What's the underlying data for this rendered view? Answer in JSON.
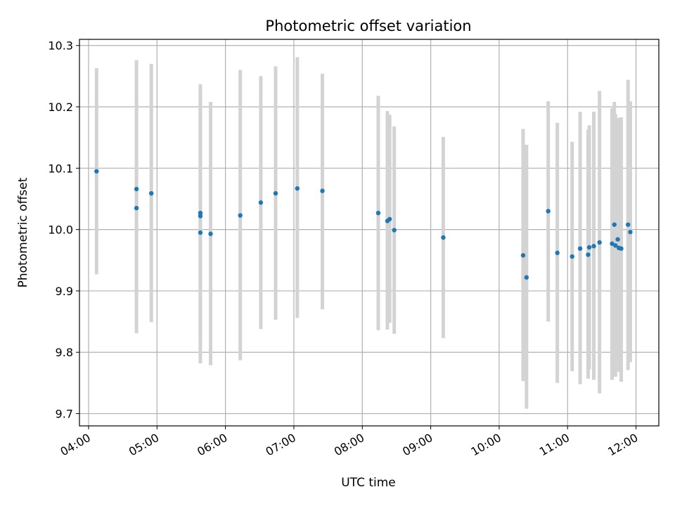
{
  "chart_data": {
    "type": "scatter",
    "title": "Photometric offset variation",
    "xlabel": "UTC time",
    "ylabel": "Photometric offset",
    "x_is_time": true,
    "xlim": [
      "03:52",
      "12:20"
    ],
    "ylim": [
      9.68,
      10.31
    ],
    "x_ticks": [
      "04:00",
      "05:00",
      "06:00",
      "07:00",
      "08:00",
      "09:00",
      "10:00",
      "11:00",
      "12:00"
    ],
    "y_ticks": [
      9.7,
      9.8,
      9.9,
      10.0,
      10.1,
      10.2,
      10.3
    ],
    "y_tick_labels": [
      "9.7",
      "9.8",
      "9.9",
      "10.0",
      "10.1",
      "10.2",
      "10.3"
    ],
    "grid": true,
    "point_color": "#1f77b4",
    "errorbar_color": "#d3d3d3",
    "points": [
      {
        "time": "04:07",
        "y": 10.095,
        "err_low": 9.927,
        "err_high": 10.263
      },
      {
        "time": "04:42",
        "y": 10.066,
        "err_low": 9.893,
        "err_high": 10.239
      },
      {
        "time": "04:42",
        "y": 10.035,
        "err_low": 9.831,
        "err_high": 10.276
      },
      {
        "time": "04:55",
        "y": 10.059,
        "err_low": 9.849,
        "err_high": 10.27
      },
      {
        "time": "05:38",
        "y": 10.027,
        "err_low": 9.817,
        "err_high": 10.237
      },
      {
        "time": "05:38",
        "y": 10.022,
        "err_low": 9.815,
        "err_high": 10.229
      },
      {
        "time": "05:38",
        "y": 9.995,
        "err_low": 9.782,
        "err_high": 10.208
      },
      {
        "time": "05:47",
        "y": 9.993,
        "err_low": 9.779,
        "err_high": 10.208
      },
      {
        "time": "06:13",
        "y": 10.023,
        "err_low": 9.787,
        "err_high": 10.26
      },
      {
        "time": "06:31",
        "y": 10.044,
        "err_low": 9.838,
        "err_high": 10.25
      },
      {
        "time": "06:44",
        "y": 10.059,
        "err_low": 9.853,
        "err_high": 10.266
      },
      {
        "time": "07:03",
        "y": 10.067,
        "err_low": 9.856,
        "err_high": 10.281
      },
      {
        "time": "07:25",
        "y": 10.063,
        "err_low": 9.87,
        "err_high": 10.254
      },
      {
        "time": "08:14",
        "y": 10.027,
        "err_low": 9.836,
        "err_high": 10.218
      },
      {
        "time": "08:22",
        "y": 10.014,
        "err_low": 9.837,
        "err_high": 10.193
      },
      {
        "time": "08:24",
        "y": 10.017,
        "err_low": 9.848,
        "err_high": 10.187
      },
      {
        "time": "08:28",
        "y": 9.999,
        "err_low": 9.83,
        "err_high": 10.168
      },
      {
        "time": "09:11",
        "y": 9.987,
        "err_low": 9.823,
        "err_high": 10.151
      },
      {
        "time": "10:21",
        "y": 9.958,
        "err_low": 9.753,
        "err_high": 10.164
      },
      {
        "time": "10:24",
        "y": 9.922,
        "err_low": 9.708,
        "err_high": 10.138
      },
      {
        "time": "10:43",
        "y": 10.03,
        "err_low": 9.85,
        "err_high": 10.209
      },
      {
        "time": "10:51",
        "y": 9.962,
        "err_low": 9.75,
        "err_high": 10.174
      },
      {
        "time": "11:04",
        "y": 9.956,
        "err_low": 9.769,
        "err_high": 10.143
      },
      {
        "time": "11:11",
        "y": 9.969,
        "err_low": 9.748,
        "err_high": 10.192
      },
      {
        "time": "11:18",
        "y": 9.959,
        "err_low": 9.757,
        "err_high": 10.163
      },
      {
        "time": "11:19",
        "y": 9.971,
        "err_low": 9.772,
        "err_high": 10.17
      },
      {
        "time": "11:23",
        "y": 9.973,
        "err_low": 9.755,
        "err_high": 10.192
      },
      {
        "time": "11:28",
        "y": 9.979,
        "err_low": 9.733,
        "err_high": 10.226
      },
      {
        "time": "11:39",
        "y": 9.977,
        "err_low": 9.755,
        "err_high": 10.198
      },
      {
        "time": "11:41",
        "y": 10.008,
        "err_low": 9.808,
        "err_high": 10.208
      },
      {
        "time": "11:42",
        "y": 9.974,
        "err_low": 9.76,
        "err_high": 10.188
      },
      {
        "time": "11:44",
        "y": 9.984,
        "err_low": 9.785,
        "err_high": 10.182
      },
      {
        "time": "11:45",
        "y": 9.97,
        "err_low": 9.768,
        "err_high": 10.18
      },
      {
        "time": "11:47",
        "y": 9.969,
        "err_low": 9.752,
        "err_high": 10.183
      },
      {
        "time": "11:53",
        "y": 10.008,
        "err_low": 9.771,
        "err_high": 10.244
      },
      {
        "time": "11:55",
        "y": 9.996,
        "err_low": 9.784,
        "err_high": 10.209
      }
    ]
  }
}
